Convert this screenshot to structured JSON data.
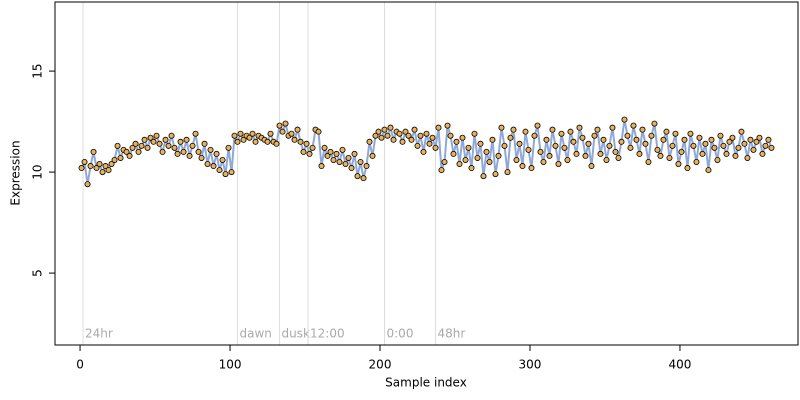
{
  "chart_data": {
    "type": "scatter",
    "xlabel": "Sample index",
    "ylabel": "Expression",
    "xlim": [
      -16.7,
      478.7
    ],
    "ylim": [
      1.44,
      18.42
    ],
    "xticks": [
      0,
      100,
      200,
      300,
      400
    ],
    "yticks": [
      5,
      10,
      15
    ],
    "annotations": [
      {
        "x": 2,
        "label": "24hr"
      },
      {
        "x": 105,
        "label": "dawn"
      },
      {
        "x": 133,
        "label": "dusk"
      },
      {
        "x": 152,
        "label": "12:00"
      },
      {
        "x": 203,
        "label": "0:00"
      },
      {
        "x": 237,
        "label": "48hr"
      }
    ],
    "line_color": "#8fa8d8",
    "point_color": "#e9b25a",
    "x": [
      1,
      3,
      5,
      7,
      9,
      11,
      13,
      15,
      17,
      19,
      21,
      23,
      25,
      27,
      29,
      31,
      33,
      35,
      37,
      39,
      41,
      43,
      45,
      47,
      49,
      51,
      53,
      55,
      57,
      59,
      61,
      63,
      65,
      67,
      69,
      71,
      73,
      75,
      77,
      79,
      81,
      83,
      85,
      87,
      89,
      91,
      93,
      95,
      97,
      99,
      101,
      103,
      105,
      107,
      109,
      111,
      113,
      115,
      117,
      119,
      121,
      123,
      125,
      127,
      129,
      131,
      133,
      135,
      137,
      139,
      141,
      143,
      145,
      147,
      149,
      151,
      153,
      155,
      157,
      159,
      161,
      163,
      165,
      167,
      169,
      171,
      173,
      175,
      177,
      179,
      181,
      183,
      185,
      187,
      189,
      191,
      193,
      195,
      197,
      199,
      201,
      203,
      205,
      207,
      209,
      211,
      213,
      215,
      217,
      219,
      221,
      223,
      225,
      227,
      229,
      231,
      233,
      235,
      237,
      239,
      241,
      243,
      245,
      247,
      249,
      251,
      253,
      255,
      257,
      259,
      261,
      263,
      265,
      267,
      269,
      271,
      273,
      275,
      277,
      279,
      281,
      283,
      285,
      287,
      289,
      291,
      293,
      295,
      297,
      299,
      301,
      303,
      305,
      307,
      309,
      311,
      313,
      315,
      317,
      319,
      321,
      323,
      325,
      327,
      329,
      331,
      333,
      335,
      337,
      339,
      341,
      343,
      345,
      347,
      349,
      351,
      353,
      355,
      357,
      359,
      361,
      363,
      365,
      367,
      369,
      371,
      373,
      375,
      377,
      379,
      381,
      383,
      385,
      387,
      389,
      391,
      393,
      395,
      397,
      399,
      401,
      403,
      405,
      407,
      409,
      411,
      413,
      415,
      417,
      419,
      421,
      423,
      425,
      427,
      429,
      431,
      433,
      435,
      437,
      439,
      441,
      443,
      445,
      447,
      449,
      451,
      453,
      455,
      457,
      459,
      461
    ],
    "values": [
      10.2,
      10.5,
      9.4,
      10.3,
      11.0,
      10.2,
      10.4,
      10.0,
      10.3,
      10.1,
      10.4,
      10.6,
      11.3,
      10.7,
      11.1,
      11.0,
      10.8,
      11.2,
      11.4,
      11.0,
      11.3,
      11.6,
      11.2,
      11.7,
      11.5,
      11.8,
      11.4,
      11.0,
      11.6,
      11.3,
      11.8,
      11.2,
      10.9,
      11.5,
      11.0,
      11.6,
      10.8,
      11.3,
      11.9,
      11.0,
      10.7,
      11.4,
      10.4,
      11.1,
      10.3,
      10.9,
      10.1,
      10.6,
      9.9,
      11.2,
      10.0,
      11.8,
      11.5,
      11.9,
      11.6,
      11.8,
      11.7,
      11.9,
      11.5,
      11.8,
      11.7,
      11.6,
      11.5,
      11.9,
      11.5,
      11.4,
      12.3,
      12.0,
      12.4,
      11.8,
      11.9,
      11.6,
      12.1,
      11.5,
      11.0,
      11.4,
      10.9,
      11.2,
      12.1,
      12.0,
      10.3,
      11.2,
      10.8,
      11.0,
      10.6,
      10.9,
      10.5,
      11.1,
      10.4,
      10.7,
      10.2,
      10.9,
      9.8,
      10.5,
      9.7,
      10.3,
      11.5,
      10.8,
      11.8,
      12.0,
      11.7,
      12.1,
      11.8,
      12.2,
      11.6,
      12.0,
      11.9,
      11.5,
      12.0,
      11.8,
      11.6,
      12.1,
      11.3,
      11.8,
      11.0,
      11.9,
      11.4,
      11.7,
      11.2,
      12.2,
      10.1,
      10.5,
      12.3,
      11.8,
      10.9,
      11.5,
      10.4,
      11.7,
      10.6,
      11.2,
      10.2,
      11.9,
      10.7,
      11.4,
      9.8,
      11.0,
      10.5,
      11.6,
      9.9,
      10.8,
      12.2,
      11.3,
      10.0,
      11.7,
      12.1,
      10.6,
      11.4,
      10.3,
      12.0,
      11.1,
      10.2,
      11.8,
      12.3,
      11.0,
      10.5,
      11.6,
      10.8,
      12.1,
      11.3,
      10.4,
      11.9,
      11.2,
      10.6,
      12.0,
      11.5,
      10.9,
      12.2,
      11.7,
      10.8,
      11.4,
      10.3,
      11.8,
      12.1,
      10.9,
      11.6,
      10.6,
      11.3,
      12.2,
      11.0,
      10.7,
      11.5,
      12.6,
      11.8,
      11.2,
      12.3,
      11.6,
      10.9,
      12.1,
      11.4,
      10.5,
      11.8,
      12.4,
      11.1,
      10.8,
      11.6,
      12.0,
      10.7,
      11.3,
      11.9,
      10.4,
      11.0,
      11.6,
      10.2,
      11.9,
      11.3,
      10.5,
      11.7,
      10.9,
      11.4,
      10.1,
      11.6,
      11.2,
      10.6,
      11.8,
      11.3,
      10.9,
      11.5,
      11.7,
      10.8,
      11.2,
      12.0,
      11.4,
      10.7,
      11.6,
      11.1,
      11.5,
      11.7,
      10.9,
      11.3,
      11.6,
      11.2
    ]
  }
}
